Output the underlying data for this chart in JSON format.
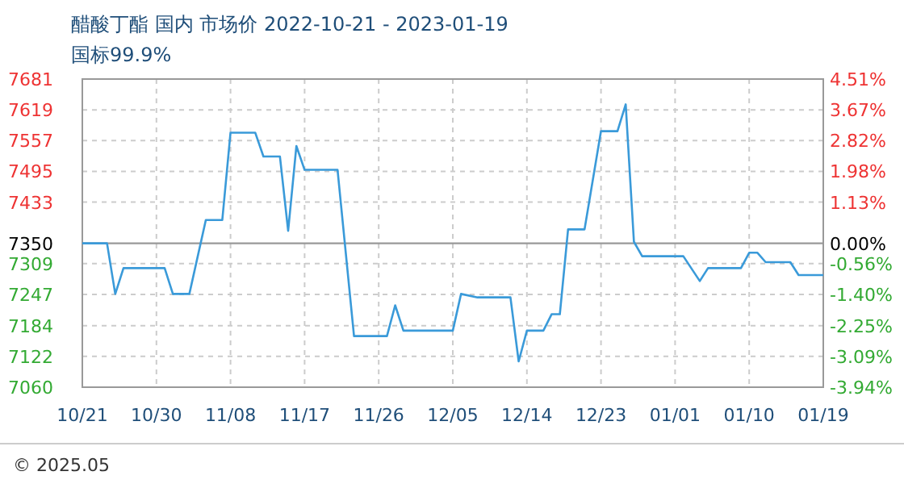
{
  "chart_data": {
    "type": "line",
    "title": "醋酸丁酯 国内 市场价 2022-10-21 - 2023-01-19",
    "subtitle": "国标99.9%",
    "x": [
      "2022-10-21",
      "2022-10-24",
      "2022-10-25",
      "2022-10-26",
      "2022-10-31",
      "2022-11-01",
      "2022-11-03",
      "2022-11-05",
      "2022-11-07",
      "2022-11-08",
      "2022-11-11",
      "2022-11-12",
      "2022-11-14",
      "2022-11-15",
      "2022-11-16",
      "2022-11-17",
      "2022-11-21",
      "2022-11-23",
      "2022-11-27",
      "2022-11-28",
      "2022-11-29",
      "2022-12-05",
      "2022-12-06",
      "2022-12-08",
      "2022-12-12",
      "2022-12-13",
      "2022-12-14",
      "2022-12-16",
      "2022-12-17",
      "2022-12-18",
      "2022-12-19",
      "2022-12-21",
      "2022-12-23",
      "2022-12-25",
      "2022-12-26",
      "2022-12-27",
      "2022-12-28",
      "2023-01-02",
      "2023-01-04",
      "2023-01-05",
      "2023-01-09",
      "2023-01-10",
      "2023-01-11",
      "2023-01-12",
      "2023-01-15",
      "2023-01-16",
      "2023-01-19"
    ],
    "series": [
      {
        "color": "#3a9ad9",
        "values": [
          7350,
          7350,
          7248,
          7300,
          7300,
          7248,
          7248,
          7397,
          7397,
          7573,
          7573,
          7525,
          7525,
          7375,
          7546,
          7498,
          7498,
          7163,
          7163,
          7225,
          7174,
          7174,
          7248,
          7241,
          7241,
          7112,
          7174,
          7174,
          7207,
          7207,
          7378,
          7378,
          7576,
          7576,
          7630,
          7353,
          7324,
          7324,
          7274,
          7300,
          7300,
          7331,
          7331,
          7312,
          7312,
          7286,
          7286
        ]
      }
    ],
    "xlim": [
      "2022-10-21",
      "2023-01-19"
    ],
    "xticks": [
      {
        "value": "2022-10-21",
        "label": "10/21"
      },
      {
        "value": "2022-10-30",
        "label": "10/30"
      },
      {
        "value": "2022-11-08",
        "label": "11/08"
      },
      {
        "value": "2022-11-17",
        "label": "11/17"
      },
      {
        "value": "2022-11-26",
        "label": "11/26"
      },
      {
        "value": "2022-12-05",
        "label": "12/05"
      },
      {
        "value": "2022-12-14",
        "label": "12/14"
      },
      {
        "value": "2022-12-23",
        "label": "12/23"
      },
      {
        "value": "2023-01-01",
        "label": "01/01"
      },
      {
        "value": "2023-01-10",
        "label": "01/10"
      },
      {
        "value": "2023-01-19",
        "label": "01/19"
      }
    ],
    "ylim": [
      7060,
      7681
    ],
    "yticks": [
      7060,
      7122,
      7184,
      7247,
      7309,
      7350,
      7433,
      7495,
      7557,
      7619,
      7681
    ],
    "y2lim": [
      -3.94,
      4.51
    ],
    "y2ticks": [
      {
        "value": -3.94,
        "label": "-3.94%"
      },
      {
        "value": -3.09,
        "label": "-3.09%"
      },
      {
        "value": -2.25,
        "label": "-2.25%"
      },
      {
        "value": -1.4,
        "label": "-1.40%"
      },
      {
        "value": -0.56,
        "label": "-0.56%"
      },
      {
        "value": 0,
        "label": "0.00%"
      },
      {
        "value": 1.13,
        "label": "1.13%"
      },
      {
        "value": 1.98,
        "label": "1.98%"
      },
      {
        "value": 2.82,
        "label": "2.82%"
      },
      {
        "value": 3.67,
        "label": "3.67%"
      },
      {
        "value": 4.51,
        "label": "4.51%"
      }
    ],
    "ref_lines": [
      {
        "axis": "y",
        "value": 7350,
        "color": "#999999",
        "line_style": "solid"
      }
    ],
    "grid": true,
    "line_style": "solid",
    "annotations": [
      "© 2025.05"
    ]
  }
}
